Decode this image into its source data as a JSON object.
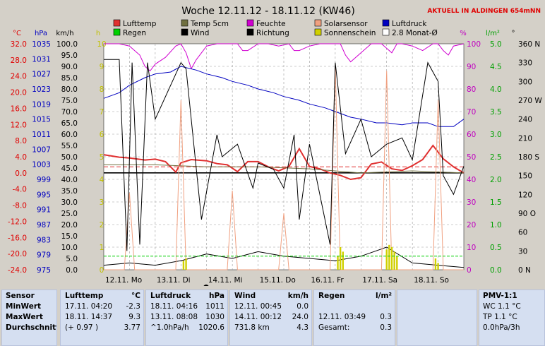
{
  "header": {
    "title": "Woche 12.11.12 - 18.11.12 (KW46)",
    "live": "AKTUELL IN ALDINGEN 654mNN"
  },
  "legend": [
    {
      "name": "Lufttemp",
      "color": "#e03030"
    },
    {
      "name": "Temp 5cm",
      "color": "#707040"
    },
    {
      "name": "Feuchte",
      "color": "#d000d0"
    },
    {
      "name": "Solarsensor",
      "color": "#f0a080"
    },
    {
      "name": "Luftdruck",
      "color": "#0000c0"
    },
    {
      "name": "Regen",
      "color": "#00d000"
    },
    {
      "name": "Wind",
      "color": "#000000"
    },
    {
      "name": "Richtung",
      "color": "#000000"
    },
    {
      "name": "Sonnenschein",
      "color": "#d0d000"
    },
    {
      "name": "2.8 Monat-Ø",
      "color": "#ffffff"
    }
  ],
  "units": {
    "temp": "°C",
    "press": "hPa",
    "wind": "km/h",
    "sun": "h",
    "pct": "%",
    "rain": "l/m²",
    "dir": "°"
  },
  "chart_data": {
    "type": "line",
    "title": "Woche 12.11.12 - 18.11.12 (KW46)",
    "x_labels": [
      "12.11. Mo",
      "13.11. Di",
      "14.11. Mi",
      "15.11. Do",
      "16.11. Fr",
      "17.11. Sa",
      "18.11. So"
    ],
    "x_range_days": [
      0,
      7
    ],
    "axes": {
      "temp": {
        "ticks": [
          "32.0",
          "28.0",
          "24.0",
          "20.0",
          "16.0",
          "12.0",
          "8.0",
          "4.0",
          "0.0",
          "-4.0",
          "-8.0",
          "-12.0",
          "-16.0",
          "-20.0",
          "-24.0"
        ],
        "range": [
          -24,
          32
        ],
        "color": "#e00000"
      },
      "press": {
        "ticks": [
          "1035",
          "1031",
          "1027",
          "1023",
          "1019",
          "1015",
          "1011",
          "1007",
          "1003",
          "999",
          "995",
          "991",
          "987",
          "983",
          "979",
          "975"
        ],
        "range": [
          975,
          1035
        ],
        "color": "#0000c0"
      },
      "wind": {
        "ticks": [
          "100.0",
          "95.0",
          "90.0",
          "85.0",
          "80.0",
          "75.0",
          "70.0",
          "65.0",
          "60.0",
          "55.0",
          "50.0",
          "45.0",
          "40.0",
          "35.0",
          "30.0",
          "25.0",
          "20.0",
          "15.0",
          "10.0",
          "5.0",
          "0.0"
        ],
        "range": [
          0,
          100
        ],
        "color": "#000000"
      },
      "sun": {
        "ticks": [
          "10",
          "9",
          "8",
          "7",
          "6",
          "5",
          "4",
          "3",
          "2",
          "1",
          "0"
        ],
        "range": [
          0,
          10
        ],
        "color": "#c0c000"
      },
      "pct": {
        "ticks": [
          "100",
          "90",
          "80",
          "70",
          "60",
          "50",
          "40",
          "30",
          "20",
          "10",
          "0"
        ],
        "range": [
          0,
          100
        ],
        "color": "#c000c0"
      },
      "rain": {
        "ticks": [
          "5.0",
          "4.5",
          "4.0",
          "3.5",
          "3.0",
          "2.5",
          "2.0",
          "1.5",
          "1.0",
          "0.5",
          "0.0"
        ],
        "range": [
          0,
          5
        ],
        "color": "#00a000"
      },
      "dir": {
        "ticks": [
          "360 N",
          "330",
          "300",
          "270 W",
          "240",
          "210",
          "180 S",
          "150",
          "120",
          "90 O",
          "60",
          "30",
          "0 N"
        ],
        "range": [
          0,
          360
        ],
        "color": "#000000"
      }
    },
    "series": [
      {
        "name": "Feuchte",
        "axis": "pct",
        "color": "#d000d0",
        "x": [
          0,
          0.3,
          0.5,
          0.7,
          0.8,
          0.9,
          1.0,
          1.2,
          1.4,
          1.5,
          1.6,
          1.7,
          1.8,
          2.0,
          2.2,
          2.4,
          2.6,
          2.7,
          2.8,
          3.0,
          3.2,
          3.4,
          3.6,
          3.7,
          3.8,
          4.0,
          4.2,
          4.4,
          4.6,
          4.7,
          4.8,
          5.0,
          5.2,
          5.4,
          5.5,
          5.6,
          5.7,
          5.8,
          6.0,
          6.2,
          6.4,
          6.5,
          6.6,
          6.7,
          6.8,
          7.0
        ],
        "y": [
          100,
          100,
          99,
          95,
          90,
          88,
          91,
          94,
          99,
          100,
          96,
          89,
          93,
          99,
          100,
          100,
          100,
          97,
          97,
          100,
          100,
          99,
          100,
          97,
          97,
          99,
          100,
          100,
          100,
          95,
          92,
          96,
          100,
          100,
          98,
          96,
          100,
          100,
          99,
          97,
          100,
          100,
          97,
          95,
          99,
          100
        ]
      },
      {
        "name": "Luftdruck",
        "axis": "press",
        "color": "#0000c0",
        "x": [
          0,
          0.3,
          0.5,
          0.8,
          1.0,
          1.3,
          1.5,
          1.8,
          2.0,
          2.3,
          2.5,
          2.8,
          3.0,
          3.3,
          3.5,
          3.8,
          4.0,
          4.3,
          4.5,
          4.8,
          5.0,
          5.3,
          5.5,
          5.8,
          6.0,
          6.3,
          6.5,
          6.8,
          7.0
        ],
        "y": [
          1020.5,
          1022,
          1024,
          1026,
          1027,
          1027.5,
          1029,
          1028,
          1027,
          1026,
          1025,
          1024,
          1023,
          1022,
          1021,
          1020,
          1019,
          1018,
          1017,
          1015.5,
          1015,
          1014,
          1014,
          1013.5,
          1014,
          1014,
          1013,
          1013,
          1015
        ]
      },
      {
        "name": "Lufttemp",
        "axis": "temp",
        "color": "#e03030",
        "x": [
          0,
          0.3,
          0.5,
          0.8,
          1.0,
          1.2,
          1.4,
          1.5,
          1.7,
          2.0,
          2.2,
          2.4,
          2.6,
          2.8,
          3.0,
          3.2,
          3.4,
          3.6,
          3.8,
          4.0,
          4.2,
          4.4,
          4.6,
          4.8,
          5.0,
          5.2,
          5.4,
          5.6,
          5.8,
          6.0,
          6.2,
          6.4,
          6.6,
          6.8,
          7.0
        ],
        "y": [
          4.5,
          3.9,
          3.7,
          3.2,
          3.4,
          2.8,
          0.2,
          2.5,
          3.3,
          3.0,
          2.3,
          2.0,
          0.3,
          2.8,
          2.8,
          1.5,
          0.5,
          1.6,
          6.0,
          1.6,
          1.0,
          0.0,
          -0.6,
          -1.6,
          -1.2,
          2.2,
          2.7,
          1.0,
          0.6,
          1.8,
          3.3,
          6.8,
          3.5,
          1.5,
          0.0
        ]
      },
      {
        "name": "Temp 5cm",
        "axis": "temp",
        "color": "#707040",
        "x": [
          0,
          1,
          2,
          3,
          4,
          5,
          6,
          7
        ],
        "y": [
          2,
          2,
          1.5,
          1.5,
          1,
          0,
          0.5,
          0
        ]
      },
      {
        "name": "Wind",
        "axis": "wind",
        "color": "#000000",
        "x": [
          0,
          0.5,
          1.0,
          1.5,
          2.0,
          2.5,
          3.0,
          3.5,
          4.0,
          4.5,
          5.0,
          5.5,
          6.0,
          6.5,
          7.0
        ],
        "y": [
          2,
          3,
          2,
          4,
          7,
          5,
          8,
          6,
          5,
          4,
          6,
          10,
          3,
          2,
          1
        ]
      },
      {
        "name": "Solarsensor",
        "axis": "pct",
        "color": "#f0a080",
        "x": [
          0,
          0.4,
          0.5,
          0.6,
          1.0,
          1.4,
          1.5,
          1.6,
          2.0,
          2.4,
          2.5,
          2.6,
          3.0,
          3.4,
          3.5,
          3.6,
          4.0,
          4.4,
          4.5,
          4.6,
          5.0,
          5.4,
          5.5,
          5.6,
          6.0,
          6.4,
          6.5,
          6.6,
          7.0
        ],
        "y": [
          0,
          0,
          34,
          0,
          0,
          0,
          75,
          0,
          0,
          0,
          35,
          0,
          0,
          0,
          25,
          0,
          0,
          0,
          90,
          0,
          0,
          0,
          88,
          0,
          0,
          0,
          75,
          0,
          0
        ]
      },
      {
        "name": "Sonnenschein",
        "axis": "sun",
        "color": "#d0d000",
        "x": [
          1.55,
          1.6,
          4.55,
          4.6,
          4.65,
          5.5,
          5.55,
          5.6,
          5.65,
          5.7,
          6.45,
          6.5
        ],
        "y": [
          0.4,
          0.5,
          0.6,
          1.0,
          0.8,
          0.9,
          1.1,
          1.0,
          0.8,
          0.6,
          0.5,
          0.3
        ]
      },
      {
        "name": "Regen",
        "axis": "rain",
        "color": "#00d000",
        "x": [
          0,
          7
        ],
        "y": [
          0.3,
          0.3
        ]
      }
    ],
    "richtung": {
      "axis": "dir",
      "x": [
        0,
        0.3,
        0.45,
        0.55,
        0.7,
        0.85,
        1.0,
        1.5,
        1.6,
        1.9,
        2.2,
        2.3,
        2.6,
        2.9,
        3.0,
        3.3,
        3.5,
        3.7,
        3.8,
        4.0,
        4.4,
        4.5,
        4.7,
        5.0,
        5.2,
        5.5,
        5.8,
        6.0,
        6.3,
        6.5,
        6.6,
        6.8,
        7.0
      ],
      "y": [
        335,
        335,
        30,
        330,
        40,
        330,
        240,
        330,
        320,
        80,
        215,
        180,
        200,
        130,
        170,
        160,
        130,
        215,
        80,
        200,
        40,
        330,
        185,
        240,
        180,
        200,
        210,
        175,
        330,
        300,
        150,
        120,
        165
      ]
    },
    "ref_lines": [
      {
        "axis": "temp",
        "value": 0,
        "color": "#000000"
      },
      {
        "axis": "temp",
        "value": 1.5,
        "color": "#e03030",
        "dashed": true
      }
    ],
    "grid": true
  },
  "table": {
    "sensor": {
      "h": "Sensor",
      "r": [
        "MinWert",
        "MaxWert",
        "Durchschnitt"
      ]
    },
    "lufttemp": {
      "h": "Lufttemp",
      "u": "°C",
      "rows": [
        [
          "17.11.  04:20",
          "-2.3"
        ],
        [
          "18.11.  14:37",
          "9.3"
        ],
        [
          "(+ 0.97 )",
          "3.77"
        ]
      ]
    },
    "luftdruck": {
      "h": "Luftdruck",
      "u": "hPa",
      "rows": [
        [
          "18.11.  04:16",
          "1011"
        ],
        [
          "13.11.  08:08",
          "1030"
        ],
        [
          "^1.0hPa/h",
          "1020.6"
        ]
      ]
    },
    "wind": {
      "h": "Wind",
      "u": "km/h",
      "rows": [
        [
          "12.11.  00:45",
          "0.0"
        ],
        [
          "14.11.  00:12",
          "24.0"
        ],
        [
          "731.8 km",
          "4.3"
        ]
      ]
    },
    "regen": {
      "h": "Regen",
      "u": "l/m²",
      "rows": [
        [
          "",
          ""
        ],
        [
          "12.11.  03:49",
          "0.3"
        ],
        [
          "Gesamt:",
          "0.3"
        ]
      ]
    },
    "pmv": {
      "h": "PMV-1:1",
      "r": [
        "WC 1.1 °C",
        "TP 1.1 °C",
        "0.0hPa/3h"
      ]
    }
  }
}
